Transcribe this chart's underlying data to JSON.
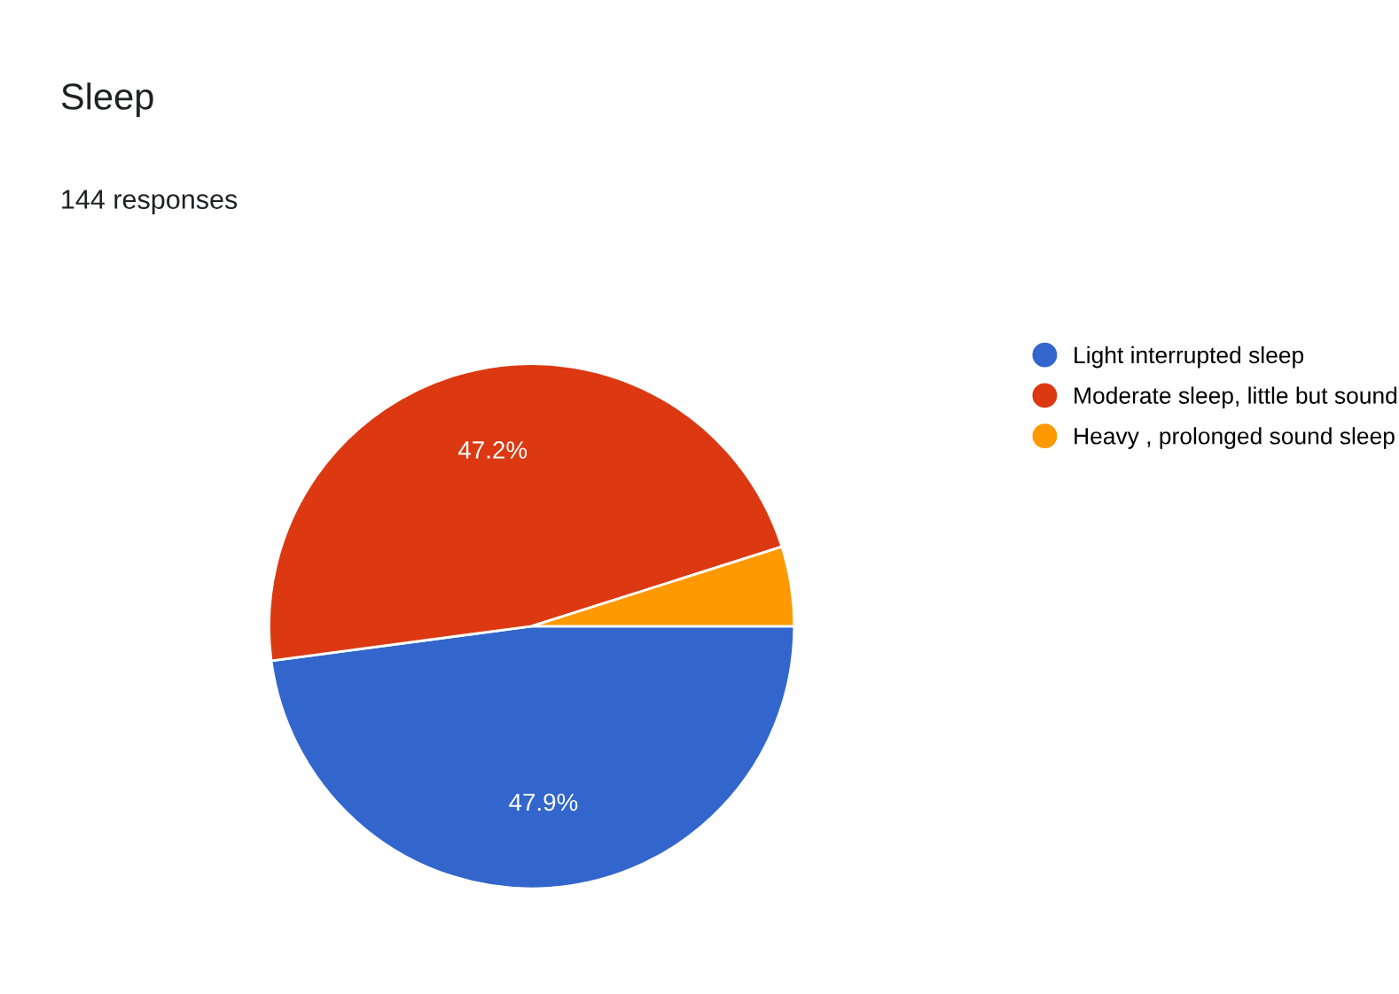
{
  "chart_data": {
    "type": "pie",
    "title": "Sleep",
    "subtitle": "144 responses",
    "categories": [
      "Light interrupted sleep",
      "Moderate sleep, little but sound",
      "Heavy , prolonged sound sleep"
    ],
    "values": [
      47.9,
      47.2,
      4.9
    ],
    "colors": [
      "#3366cc",
      "#dc3912",
      "#ff9900"
    ],
    "value_labels": [
      "47.9%",
      "47.2%",
      null
    ],
    "legend": "right"
  }
}
